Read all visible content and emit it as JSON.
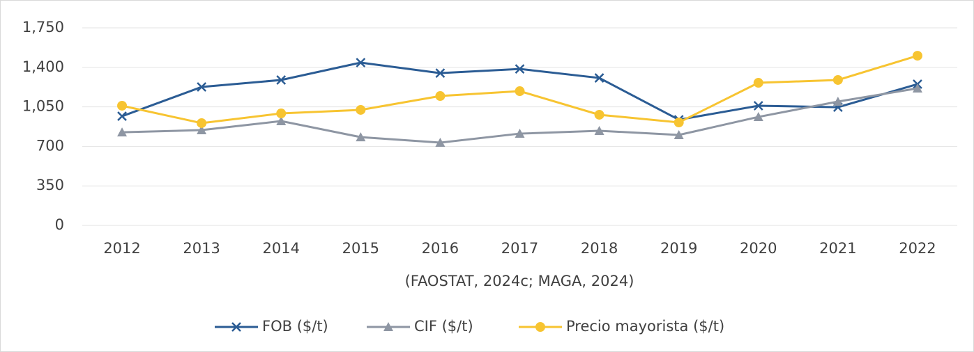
{
  "chart_data": {
    "type": "line",
    "xlabel": "(FAOSTAT, 2024c; MAGA, 2024)",
    "categories": [
      "2012",
      "2013",
      "2014",
      "2015",
      "2016",
      "2017",
      "2018",
      "2019",
      "2020",
      "2021",
      "2022"
    ],
    "series": [
      {
        "name": "FOB ($/t)",
        "color": "#2b5c94",
        "marker": "x",
        "values": [
          967,
          1226,
          1288,
          1442,
          1349,
          1386,
          1306,
          936,
          1060,
          1047,
          1251
        ]
      },
      {
        "name": "CIF ($/t)",
        "color": "#8e96a3",
        "marker": "triangle",
        "values": [
          825,
          844,
          924,
          782,
          733,
          813,
          838,
          801,
          961,
          1097,
          1214
        ]
      },
      {
        "name": "Precio mayorista ($/t)",
        "color": "#f7c431",
        "marker": "circle",
        "values": [
          1060,
          906,
          992,
          1023,
          1146,
          1189,
          980,
          912,
          1263,
          1288,
          1503
        ]
      }
    ],
    "ylim": [
      0,
      1750
    ],
    "yticks": [
      0,
      350,
      700,
      {
        "value": 1050,
        "label": "1,050"
      },
      {
        "value": 1400,
        "label": "1,400"
      },
      {
        "value": 1750,
        "label": "1,750"
      }
    ],
    "grid": true,
    "legend": "bottom"
  }
}
